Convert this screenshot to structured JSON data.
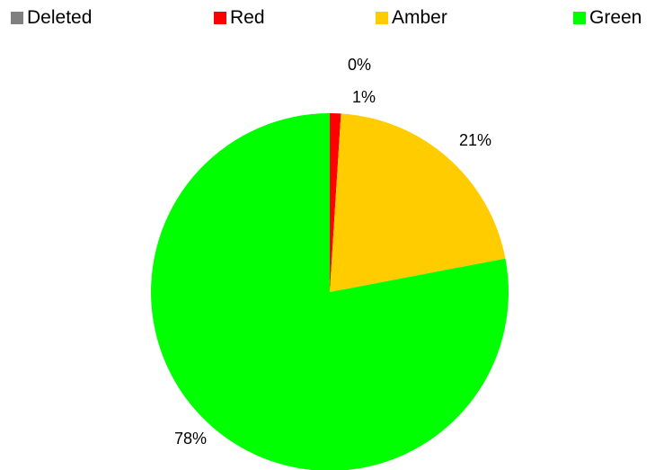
{
  "chart_data": {
    "type": "pie",
    "categories": [
      "Deleted",
      "Red",
      "Amber",
      "Green"
    ],
    "values": [
      0,
      1,
      21,
      78
    ],
    "labels": [
      "0%",
      "1%",
      "21%",
      "78%"
    ],
    "colors": [
      "#808080",
      "#ff0000",
      "#ffcc00",
      "#00ff00"
    ],
    "legend_placement": "top",
    "start_angle_deg": 0,
    "direction": "clockwise"
  }
}
